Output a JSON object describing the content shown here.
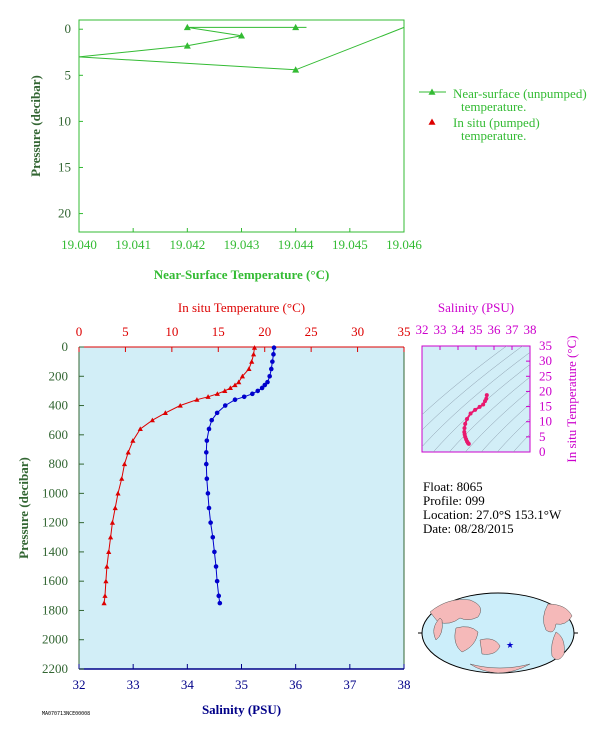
{
  "colors": {
    "green": "#33bb33",
    "axis_green": "#336633",
    "red": "#dd0000",
    "blue": "#0000cc",
    "magenta": "#cc00cc",
    "navy": "#000088",
    "panel_bg": "#d2eef7",
    "land": "#f5b9b9",
    "ocean": "#cceefa",
    "profile_pink": "#e8196e"
  },
  "top_chart": {
    "legend_unpumped": [
      "Near-surface (unpumped)",
      "temperature."
    ],
    "legend_pumped": [
      "In situ (pumped)",
      "temperature."
    ]
  },
  "main_chart": {
    "temp_title": "In situ Temperature (°C)",
    "sal_title": "Salinity (PSU)",
    "ylabel": "Pressure (decibar)"
  },
  "ts_inset": {
    "title": "Salinity (PSU)",
    "ylabel": "In situ Temperature (°C)",
    "xticks": [
      "32",
      "33",
      "34",
      "35",
      "36",
      "37",
      "38"
    ],
    "yticks": [
      "0",
      "5",
      "10",
      "15",
      "20",
      "25",
      "30",
      "35"
    ]
  },
  "info": {
    "float": "Float:  8065",
    "profile": "Profile:  099",
    "location": "Location:  27.0°S  153.1°W",
    "date": "Date:  08/28/2015"
  },
  "footer_code": "MA070713NCE00008",
  "chart_data": [
    {
      "type": "line",
      "title": "",
      "xlabel": "Near-Surface Temperature (°C)",
      "ylabel": "Pressure (decibar)",
      "xlim": [
        19.04,
        19.046
      ],
      "ylim": [
        22,
        -1
      ],
      "x_ticks": [
        "19.040",
        "19.041",
        "19.042",
        "19.043",
        "19.044",
        "19.045",
        "19.046"
      ],
      "y_ticks": [
        "0",
        "5",
        "10",
        "15",
        "20"
      ],
      "series": [
        {
          "name": "Near-surface (unpumped) temperature.",
          "x": [
            19.0442,
            19.042,
            19.043,
            19.042,
            19.04,
            19.044
          ],
          "y": [
            -0.2,
            -0.2,
            0.7,
            1.8,
            3.0,
            4.4
          ],
          "markers": [
            false,
            true,
            true,
            true,
            false,
            true
          ]
        },
        {
          "name": "In situ (pumped) temperature.",
          "x": [
            19.044
          ],
          "y": [
            -0.2
          ]
        }
      ]
    },
    {
      "type": "line",
      "title": "",
      "xlabel": "In situ Temperature (°C)",
      "ylabel": "Pressure (decibar)",
      "xlim": [
        0,
        35
      ],
      "ylim": [
        2200,
        0
      ],
      "x_ticks": [
        "0",
        "5",
        "10",
        "15",
        "20",
        "25",
        "30",
        "35"
      ],
      "y_ticks": [
        "0",
        "200",
        "400",
        "600",
        "800",
        "1000",
        "1200",
        "1400",
        "1600",
        "1800",
        "2000",
        "2200"
      ],
      "series": [
        {
          "name": "In situ Temperature",
          "x": [
            18.9,
            18.8,
            18.6,
            18.3,
            17.6,
            17.2,
            16.8,
            16.3,
            15.7,
            14.9,
            13.9,
            12.7,
            10.9,
            9.3,
            7.9,
            6.6,
            5.8,
            5.3,
            4.9,
            4.6,
            4.2,
            3.9,
            3.6,
            3.4,
            3.2,
            3.0,
            2.9,
            2.8,
            2.7
          ],
          "y": [
            5,
            50,
            100,
            150,
            200,
            240,
            260,
            280,
            300,
            320,
            340,
            360,
            400,
            450,
            500,
            560,
            640,
            720,
            800,
            900,
            1000,
            1100,
            1200,
            1300,
            1400,
            1500,
            1600,
            1700,
            1750
          ]
        }
      ]
    },
    {
      "type": "line",
      "title": "",
      "xlabel": "Salinity (PSU)",
      "ylabel": "Pressure (decibar)",
      "xlim": [
        32,
        38
      ],
      "ylim": [
        2200,
        0
      ],
      "x_ticks": [
        "32",
        "33",
        "34",
        "35",
        "36",
        "37",
        "38"
      ],
      "series": [
        {
          "name": "Salinity",
          "x": [
            35.6,
            35.59,
            35.57,
            35.55,
            35.52,
            35.48,
            35.43,
            35.38,
            35.3,
            35.2,
            35.05,
            34.88,
            34.7,
            34.55,
            34.45,
            34.4,
            34.36,
            34.35,
            34.35,
            34.36,
            34.38,
            34.4,
            34.43,
            34.47,
            34.5,
            34.53,
            34.55,
            34.58,
            34.6
          ],
          "y": [
            5,
            50,
            100,
            150,
            200,
            240,
            260,
            280,
            300,
            320,
            340,
            360,
            400,
            450,
            500,
            560,
            640,
            720,
            800,
            900,
            1000,
            1100,
            1200,
            1300,
            1400,
            1500,
            1600,
            1700,
            1750
          ]
        }
      ]
    },
    {
      "type": "scatter",
      "title": "",
      "xlabel": "Salinity (PSU)",
      "ylabel": "In situ Temperature (°C)",
      "xlim": [
        32,
        38
      ],
      "ylim": [
        0,
        35
      ],
      "x": [
        34.6,
        34.55,
        34.5,
        34.45,
        34.4,
        34.37,
        34.35,
        34.36,
        34.4,
        34.5,
        34.7,
        34.95,
        35.2,
        35.4,
        35.5,
        35.57,
        35.6
      ],
      "y": [
        2.7,
        3.0,
        3.5,
        4.2,
        5.0,
        5.8,
        6.6,
        7.9,
        9.3,
        10.9,
        12.7,
        13.9,
        14.9,
        15.7,
        16.8,
        17.6,
        18.8
      ]
    }
  ]
}
